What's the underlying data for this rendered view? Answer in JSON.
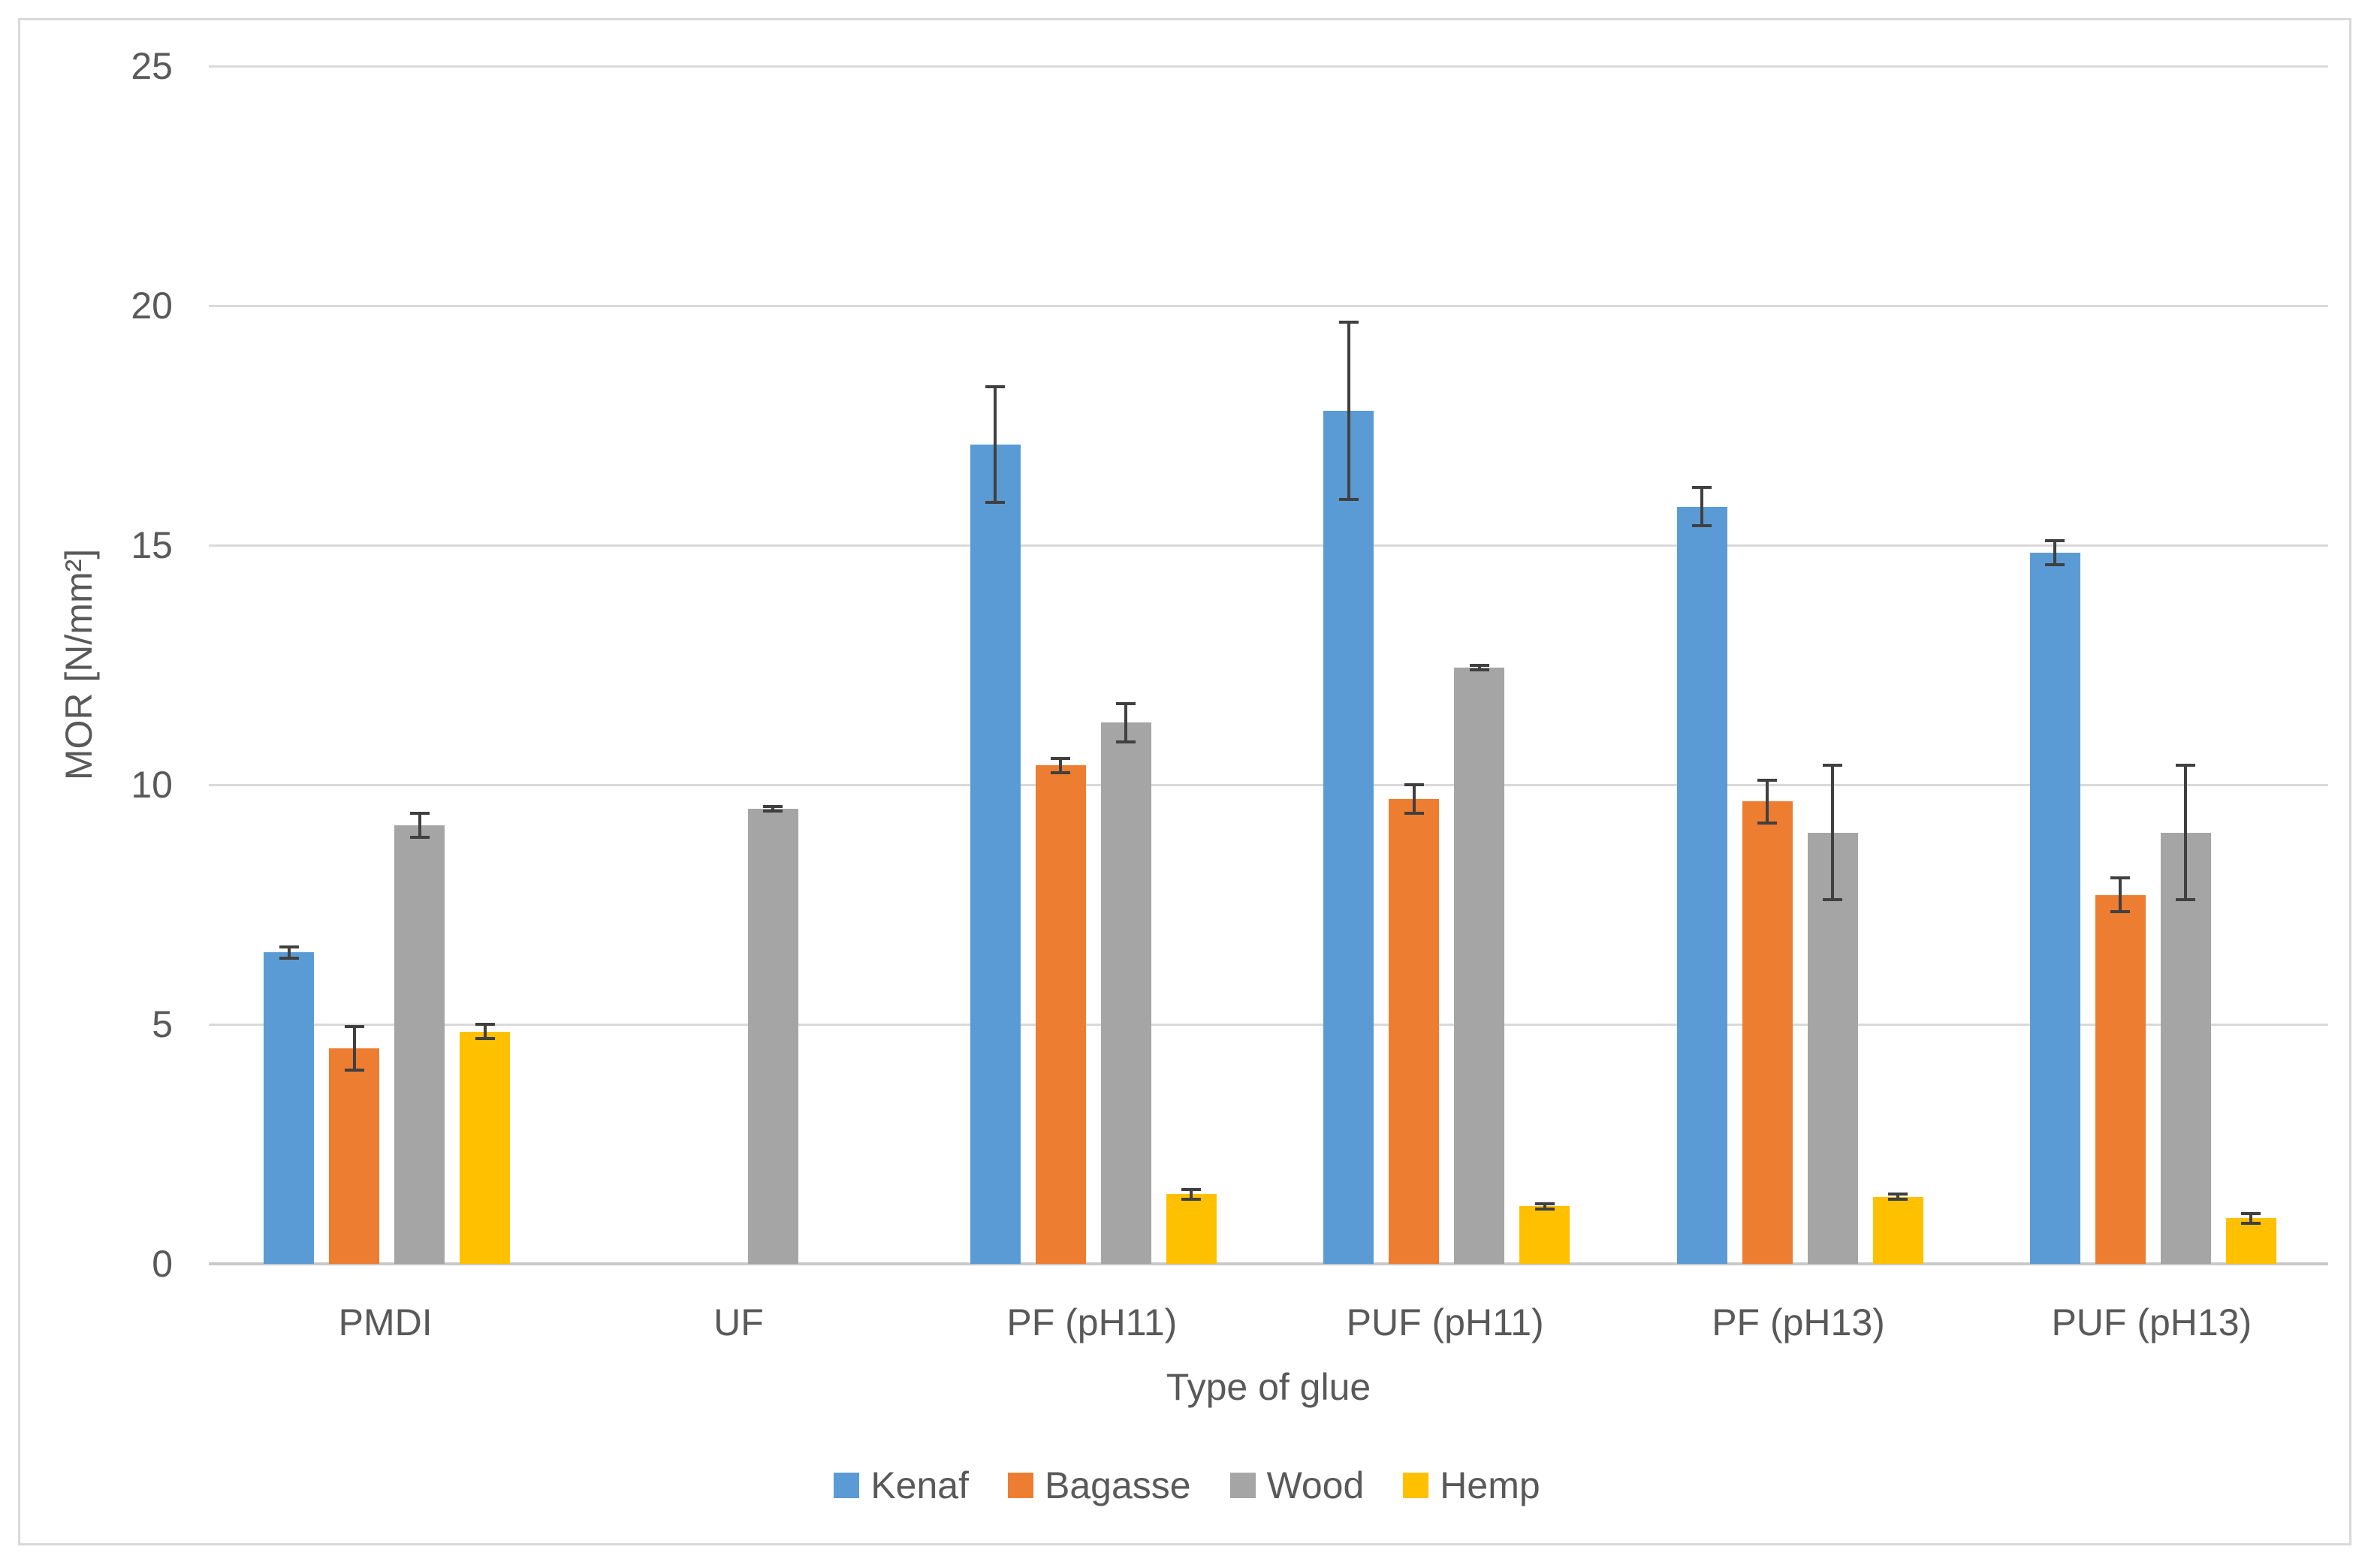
{
  "chart_data": {
    "type": "bar",
    "title": "",
    "xlabel": "Type of glue",
    "ylabel": "MOR [N/mm²]",
    "ylim": [
      0,
      25
    ],
    "yticks": [
      0,
      5,
      10,
      15,
      20,
      25
    ],
    "grid": true,
    "legend_position": "bottom",
    "error_bars": true,
    "categories": [
      "PMDI",
      "UF",
      "PF (pH11)",
      "PUF (pH11)",
      "PF (pH13)",
      "PUF (pH13)"
    ],
    "series": [
      {
        "name": "Kenaf",
        "color": "#5B9BD5",
        "values": [
          6.5,
          null,
          17.1,
          17.8,
          15.8,
          14.85
        ],
        "errors": [
          0.12,
          null,
          1.2,
          1.85,
          0.4,
          0.25
        ]
      },
      {
        "name": "Bagasse",
        "color": "#ED7D31",
        "values": [
          4.5,
          null,
          10.4,
          9.7,
          9.65,
          7.7
        ],
        "errors": [
          0.45,
          null,
          0.15,
          0.3,
          0.45,
          0.35
        ]
      },
      {
        "name": "Wood",
        "color": "#A5A5A5",
        "values": [
          9.15,
          9.5,
          11.3,
          12.45,
          9.0,
          9.0
        ],
        "errors": [
          0.25,
          0.05,
          0.4,
          0.05,
          1.4,
          1.4
        ]
      },
      {
        "name": "Hemp",
        "color": "#FFC000",
        "values": [
          4.85,
          null,
          1.45,
          1.2,
          1.4,
          0.95
        ],
        "errors": [
          0.15,
          null,
          0.1,
          0.05,
          0.05,
          0.1
        ]
      }
    ]
  },
  "colors": {
    "text": "#595959",
    "gridline": "#D9D9D9",
    "baseline": "#C8C8C8",
    "error_bar": "#404040",
    "frame": "#D9D9D9",
    "background": "#FFFFFF"
  }
}
